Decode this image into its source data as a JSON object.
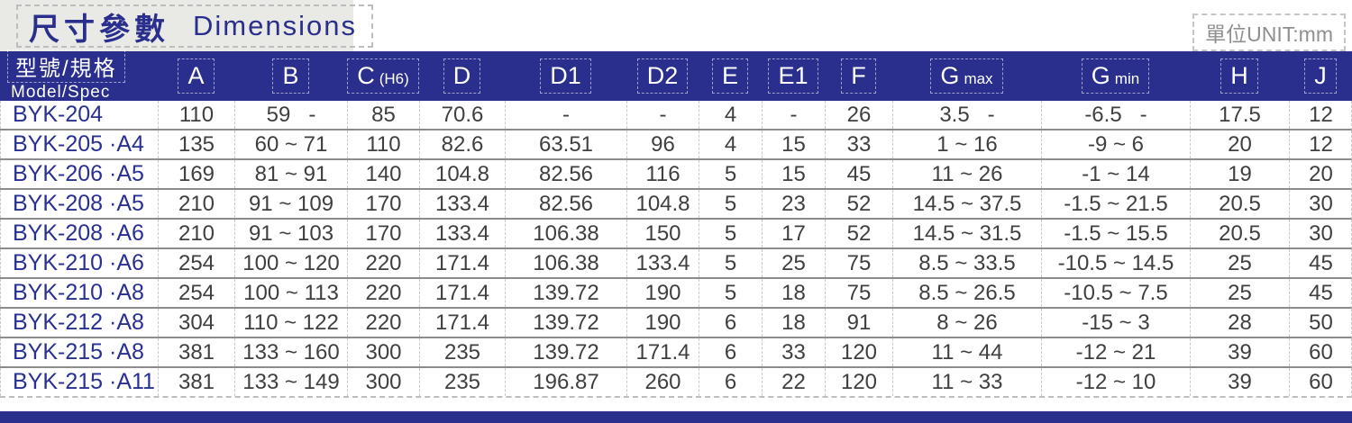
{
  "title": {
    "zh": "尺寸參數",
    "en": "Dimensions"
  },
  "unit_label": "單位UNIT:mm",
  "colors": {
    "navy": "#2a2e8c",
    "title_band_bg": "#e9e9e6",
    "value_text": "#3f3f3f",
    "model_text": "#283092",
    "unit_text": "#8f8f8f"
  },
  "table": {
    "header": {
      "model_zh": "型號/規格",
      "model_en": "Model/Spec",
      "columns": [
        {
          "main": "A",
          "sub": ""
        },
        {
          "main": "B",
          "sub": ""
        },
        {
          "main": "C",
          "sub": "(H6)"
        },
        {
          "main": "D",
          "sub": ""
        },
        {
          "main": "D1",
          "sub": ""
        },
        {
          "main": "D2",
          "sub": ""
        },
        {
          "main": "E",
          "sub": ""
        },
        {
          "main": "E1",
          "sub": ""
        },
        {
          "main": "F",
          "sub": ""
        },
        {
          "main": "G",
          "sub": "max"
        },
        {
          "main": "G",
          "sub": "min"
        },
        {
          "main": "H",
          "sub": ""
        },
        {
          "main": "J",
          "sub": ""
        }
      ]
    },
    "rows": [
      {
        "model": "BYK-204",
        "values": [
          "110",
          "59   -",
          "85",
          "70.6",
          "-",
          "-",
          "4",
          "-",
          "26",
          "3.5   -",
          "-6.5   -",
          "17.5",
          "12"
        ]
      },
      {
        "model": "BYK-205 ·A4",
        "values": [
          "135",
          "60 ~ 71",
          "110",
          "82.6",
          "63.51",
          "96",
          "4",
          "15",
          "33",
          "1 ~ 16",
          "-9 ~ 6",
          "20",
          "12"
        ]
      },
      {
        "model": "BYK-206 ·A5",
        "values": [
          "169",
          "81 ~ 91",
          "140",
          "104.8",
          "82.56",
          "116",
          "5",
          "15",
          "45",
          "11 ~ 26",
          "-1 ~ 14",
          "19",
          "20"
        ]
      },
      {
        "model": "BYK-208 ·A5",
        "values": [
          "210",
          "91 ~ 109",
          "170",
          "133.4",
          "82.56",
          "104.8",
          "5",
          "23",
          "52",
          "14.5 ~ 37.5",
          "-1.5 ~ 21.5",
          "20.5",
          "30"
        ]
      },
      {
        "model": "BYK-208 ·A6",
        "values": [
          "210",
          "91 ~ 103",
          "170",
          "133.4",
          "106.38",
          "150",
          "5",
          "17",
          "52",
          "14.5 ~ 31.5",
          "-1.5 ~ 15.5",
          "20.5",
          "30"
        ]
      },
      {
        "model": "BYK-210 ·A6",
        "values": [
          "254",
          "100 ~ 120",
          "220",
          "171.4",
          "106.38",
          "133.4",
          "5",
          "25",
          "75",
          "8.5 ~ 33.5",
          "-10.5 ~ 14.5",
          "25",
          "45"
        ]
      },
      {
        "model": "BYK-210 ·A8",
        "values": [
          "254",
          "100 ~ 113",
          "220",
          "171.4",
          "139.72",
          "190",
          "5",
          "18",
          "75",
          "8.5 ~ 26.5",
          "-10.5 ~ 7.5",
          "25",
          "45"
        ]
      },
      {
        "model": "BYK-212 ·A8",
        "values": [
          "304",
          "110 ~ 122",
          "220",
          "171.4",
          "139.72",
          "190",
          "6",
          "18",
          "91",
          "8 ~ 26",
          "-15 ~ 3",
          "28",
          "50"
        ]
      },
      {
        "model": "BYK-215 ·A8",
        "values": [
          "381",
          "133 ~ 160",
          "300",
          "235",
          "139.72",
          "171.4",
          "6",
          "33",
          "120",
          "11 ~ 44",
          "-12 ~ 21",
          "39",
          "60"
        ]
      },
      {
        "model": "BYK-215 ·A11",
        "values": [
          "381",
          "133 ~ 149",
          "300",
          "235",
          "196.87",
          "260",
          "6",
          "22",
          "120",
          "11 ~ 33",
          "-12 ~ 10",
          "39",
          "60"
        ]
      }
    ]
  }
}
